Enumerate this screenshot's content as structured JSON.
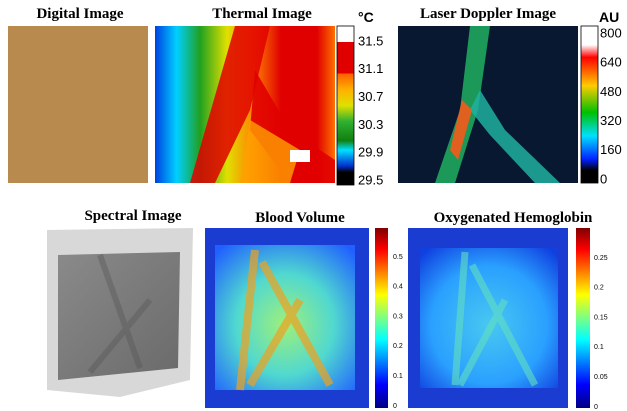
{
  "panels": [
    {
      "title": "Digital Image"
    },
    {
      "title": "Thermal Image",
      "colorbar": {
        "unit": "°C",
        "ticks": [
          "31.5",
          "31.1",
          "30.7",
          "30.3",
          "29.9",
          "29.5"
        ]
      }
    },
    {
      "title": "Laser Doppler Image",
      "colorbar": {
        "unit": "AU",
        "ticks": [
          "800",
          "640",
          "480",
          "320",
          "160",
          "0"
        ]
      }
    },
    {
      "title": "Spectral Image"
    },
    {
      "title": "Blood Volume",
      "colorbar": {
        "ticks": [
          "0.5",
          "0.4",
          "0.3",
          "0.2",
          "0.1",
          "0"
        ]
      }
    },
    {
      "title": "Oxygenated Hemoglobin",
      "colorbar": {
        "ticks": [
          "0.25",
          "0.2",
          "0.15",
          "0.1",
          "0.05",
          "0"
        ]
      }
    }
  ]
}
